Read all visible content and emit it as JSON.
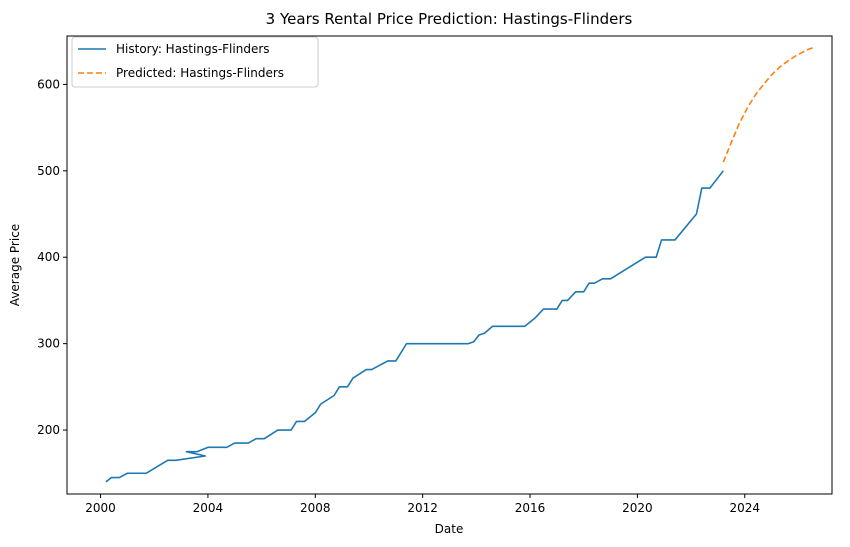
{
  "chart_data": {
    "type": "line",
    "title": "3 Years Rental Price Prediction: Hastings-Flinders",
    "xlabel": "Date",
    "ylabel": "Average Price",
    "xlim": [
      1998.75,
      2027.25
    ],
    "ylim": [
      126,
      656
    ],
    "x_ticks": [
      2000,
      2004,
      2008,
      2012,
      2016,
      2020,
      2024
    ],
    "x_tick_labels": [
      "2000",
      "2004",
      "2008",
      "2012",
      "2016",
      "2020",
      "2024"
    ],
    "y_ticks": [
      200,
      300,
      400,
      500,
      600
    ],
    "y_tick_labels": [
      "200",
      "300",
      "400",
      "500",
      "600"
    ],
    "grid": false,
    "legend_position": "upper-left",
    "series": [
      {
        "name": "History: Hastings-Flinders",
        "color": "#1f77b4",
        "style": "solid",
        "points": [
          [
            2000.2,
            140
          ],
          [
            2000.4,
            145
          ],
          [
            2000.7,
            145
          ],
          [
            2001.0,
            150
          ],
          [
            2001.7,
            150
          ],
          [
            2002.5,
            165
          ],
          [
            2002.8,
            165
          ],
          [
            2003.9,
            170
          ],
          [
            2003.2,
            175
          ],
          [
            2003.6,
            175
          ],
          [
            2004.0,
            180
          ],
          [
            2004.7,
            180
          ],
          [
            2005.0,
            185
          ],
          [
            2005.5,
            185
          ],
          [
            2005.8,
            190
          ],
          [
            2006.1,
            190
          ],
          [
            2006.6,
            200
          ],
          [
            2007.1,
            200
          ],
          [
            2007.3,
            210
          ],
          [
            2007.6,
            210
          ],
          [
            2008.0,
            220
          ],
          [
            2008.2,
            230
          ],
          [
            2008.7,
            240
          ],
          [
            2008.9,
            250
          ],
          [
            2009.2,
            250
          ],
          [
            2009.4,
            260
          ],
          [
            2009.9,
            270
          ],
          [
            2010.1,
            270
          ],
          [
            2010.7,
            280
          ],
          [
            2011.0,
            280
          ],
          [
            2011.4,
            300
          ],
          [
            2013.7,
            300
          ],
          [
            2013.9,
            302
          ],
          [
            2014.1,
            310
          ],
          [
            2014.3,
            312
          ],
          [
            2014.6,
            320
          ],
          [
            2015.8,
            320
          ],
          [
            2016.2,
            330
          ],
          [
            2016.5,
            340
          ],
          [
            2017.0,
            340
          ],
          [
            2017.2,
            350
          ],
          [
            2017.4,
            350
          ],
          [
            2017.7,
            360
          ],
          [
            2018.0,
            360
          ],
          [
            2018.2,
            370
          ],
          [
            2018.4,
            370
          ],
          [
            2018.7,
            375
          ],
          [
            2019.0,
            375
          ],
          [
            2020.3,
            400
          ],
          [
            2020.7,
            400
          ],
          [
            2020.9,
            420
          ],
          [
            2021.4,
            420
          ],
          [
            2022.2,
            450
          ],
          [
            2022.4,
            480
          ],
          [
            2022.7,
            480
          ],
          [
            2023.2,
            500
          ]
        ]
      },
      {
        "name": "Predicted: Hastings-Flinders",
        "color": "#ff7f0e",
        "style": "dashed",
        "points": [
          [
            2023.2,
            510
          ],
          [
            2023.5,
            533
          ],
          [
            2023.8,
            555
          ],
          [
            2024.1,
            573
          ],
          [
            2024.4,
            588
          ],
          [
            2024.7,
            600
          ],
          [
            2025.0,
            611
          ],
          [
            2025.3,
            620
          ],
          [
            2025.6,
            627
          ],
          [
            2025.9,
            633
          ],
          [
            2026.2,
            638
          ],
          [
            2026.4,
            641
          ],
          [
            2026.6,
            643
          ]
        ]
      }
    ]
  }
}
